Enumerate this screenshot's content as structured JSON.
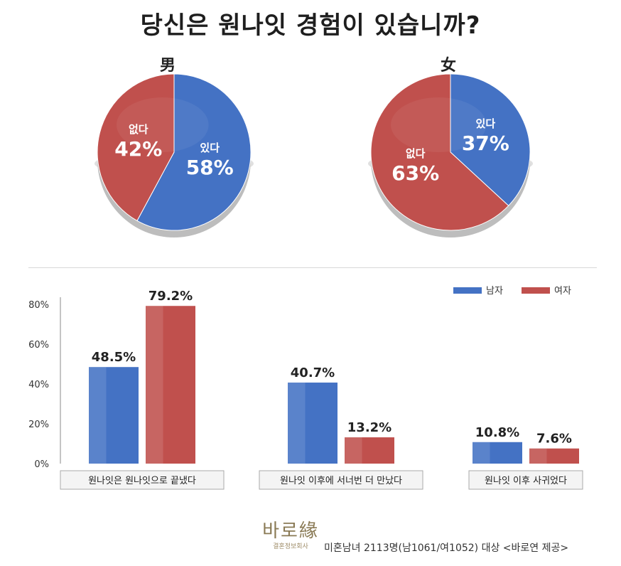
{
  "title": "당신은 원나잇 경험이 있습니까?",
  "colors": {
    "male": "#4472C4",
    "female": "#C0504D"
  },
  "chart_data": [
    {
      "type": "pie",
      "title": "男",
      "slices": [
        {
          "label": "있다",
          "value": 58,
          "display": "58%",
          "color": "#4472C4"
        },
        {
          "label": "없다",
          "value": 42,
          "display": "42%",
          "color": "#C0504D"
        }
      ]
    },
    {
      "type": "pie",
      "title": "女",
      "slices": [
        {
          "label": "있다",
          "value": 37,
          "display": "37%",
          "color": "#4472C4"
        },
        {
          "label": "없다",
          "value": 63,
          "display": "63%",
          "color": "#C0504D"
        }
      ]
    },
    {
      "type": "bar",
      "categories": [
        "원나잇은 원나잇으로 끝냈다",
        "원나잇 이후에 서너번 더 만났다",
        "원나잇 이후 사귀었다"
      ],
      "series": [
        {
          "name": "남자",
          "values": [
            48.5,
            40.7,
            10.8
          ],
          "labels": [
            "48.5%",
            "40.7%",
            "10.8%"
          ],
          "color": "#4472C4"
        },
        {
          "name": "여자",
          "values": [
            79.2,
            13.2,
            7.6
          ],
          "labels": [
            "79.2%",
            "13.2%",
            "7.6%"
          ],
          "color": "#C0504D"
        }
      ],
      "yticks": [
        "0%",
        "20%",
        "40%",
        "60%",
        "80%"
      ],
      "ylim": [
        0,
        80
      ],
      "legend": "top-right",
      "grid": false
    }
  ],
  "footer": {
    "logo": "바로緣",
    "logo_sub": "결혼정보회사",
    "source": "미혼남녀 2113명(남1061/여1052) 대상 <바로연 제공>"
  }
}
